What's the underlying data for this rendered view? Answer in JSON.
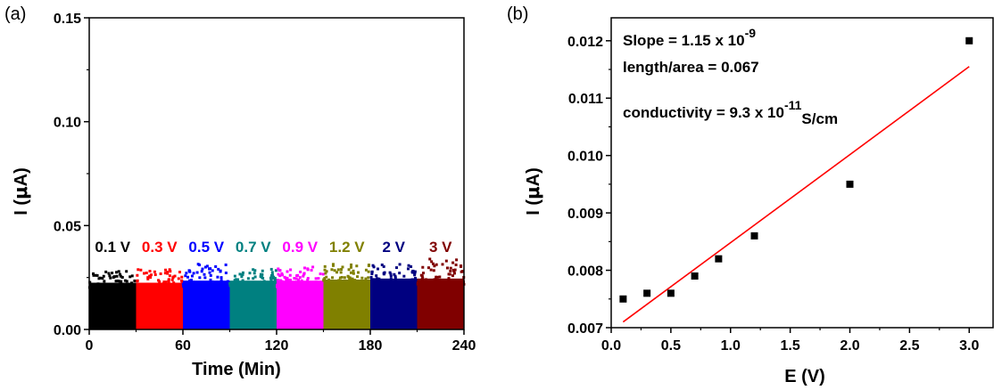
{
  "chart_data": [
    {
      "type": "scatter",
      "panel_label": "(a)",
      "xlabel": "Time (Min)",
      "ylabel_prefix": "I (",
      "ylabel_mu": "μ",
      "ylabel_suffix": "A)",
      "xlim": [
        0,
        240
      ],
      "ylim": [
        0,
        0.15
      ],
      "x_ticks": [
        "0",
        "60",
        "120",
        "180",
        "240"
      ],
      "y_ticks": [
        "0.00",
        "0.05",
        "0.10",
        "0.15"
      ],
      "segments": [
        {
          "label": "0.1 V",
          "x_start": 0,
          "x_end": 30,
          "base": 0.0225,
          "peak": 0.028,
          "color": "#000000"
        },
        {
          "label": "0.3 V",
          "x_start": 30,
          "x_end": 60,
          "base": 0.0225,
          "peak": 0.029,
          "color": "#ff0000"
        },
        {
          "label": "0.5 V",
          "x_start": 60,
          "x_end": 90,
          "base": 0.0235,
          "peak": 0.032,
          "color": "#0000ff"
        },
        {
          "label": "0.7 V",
          "x_start": 90,
          "x_end": 120,
          "base": 0.0235,
          "peak": 0.029,
          "color": "#008080"
        },
        {
          "label": "0.9 V",
          "x_start": 120,
          "x_end": 150,
          "base": 0.0235,
          "peak": 0.031,
          "color": "#ff00ff"
        },
        {
          "label": "1.2 V",
          "x_start": 150,
          "x_end": 180,
          "base": 0.024,
          "peak": 0.032,
          "color": "#808000"
        },
        {
          "label": "2 V",
          "x_start": 180,
          "x_end": 210,
          "base": 0.0245,
          "peak": 0.032,
          "color": "#000080"
        },
        {
          "label": "3 V",
          "x_start": 210,
          "x_end": 240,
          "base": 0.0245,
          "peak": 0.034,
          "color": "#800000"
        }
      ]
    },
    {
      "type": "scatter",
      "panel_label": "(b)",
      "xlabel": "E (V)",
      "ylabel_prefix": "I (",
      "ylabel_mu": "μ",
      "ylabel_suffix": "A)",
      "xlim": [
        0,
        3.2
      ],
      "ylim": [
        0.007,
        0.0124
      ],
      "x_ticks": [
        "0.0",
        "0.5",
        "1.0",
        "1.5",
        "2.0",
        "2.5",
        "3.0"
      ],
      "y_ticks": [
        "0.007",
        "0.008",
        "0.009",
        "0.010",
        "0.011",
        "0.012"
      ],
      "x": [
        0.1,
        0.3,
        0.5,
        0.7,
        0.9,
        1.2,
        2.0,
        3.0
      ],
      "y": [
        0.0075,
        0.0076,
        0.0076,
        0.0079,
        0.0082,
        0.0086,
        0.0095,
        0.012
      ],
      "fit_line": {
        "x": [
          0.1,
          3.0
        ],
        "y": [
          0.0071,
          0.01155
        ],
        "color": "#ff0000"
      },
      "annotations": {
        "slope_text": "Slope = 1.15 x 10",
        "slope_exp": "-9",
        "length_area": "length/area = 0.067",
        "cond_text": "conductivity = 9.3 x 10",
        "cond_exp": "-11",
        "cond_unit": "S/cm"
      }
    }
  ]
}
